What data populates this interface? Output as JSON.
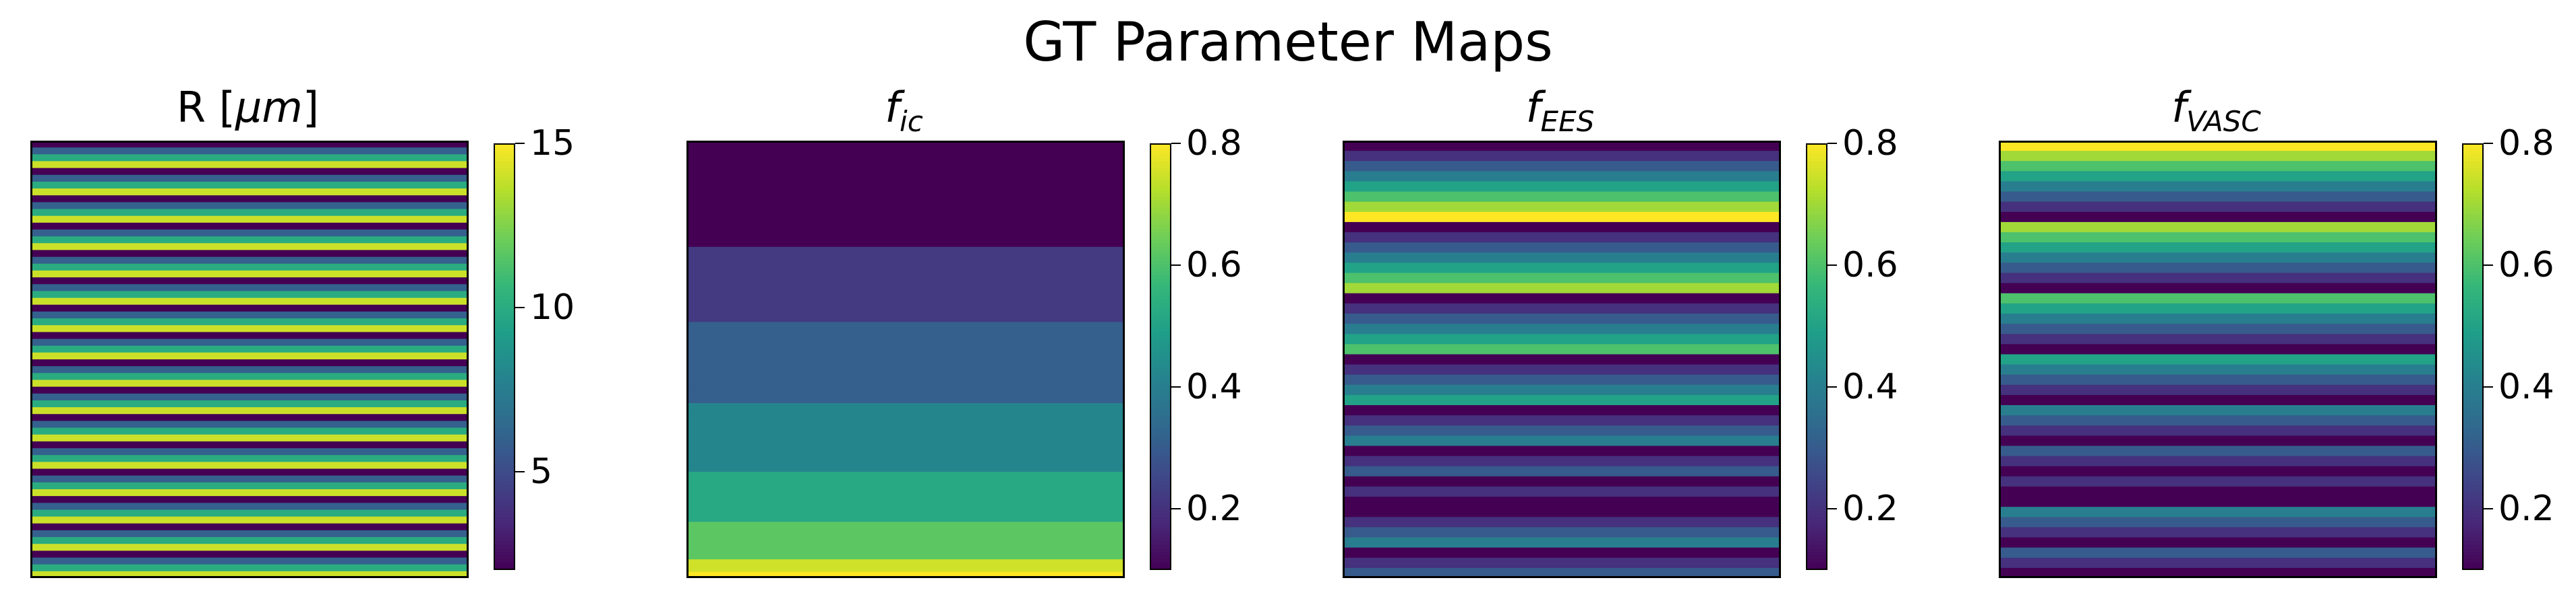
{
  "figure": {
    "title": "GT Parameter Maps"
  },
  "colors": {
    "viridis": [
      "#440154",
      "#482878",
      "#3e4989",
      "#31688e",
      "#26828e",
      "#1f9e89",
      "#35b779",
      "#6ece58",
      "#b5de2b",
      "#fde725"
    ]
  },
  "chart_data": [
    {
      "type": "heatmap",
      "title": "R [μm]",
      "title_parts": {
        "base": "R [",
        "unit": "μm",
        "close": "]"
      },
      "cmap": "viridis",
      "vmin": 2,
      "vmax": 15,
      "colorbar_ticks": [
        "5",
        "10",
        "15"
      ],
      "colorbar_tick_values": [
        5,
        10,
        15
      ],
      "rows": [
        2,
        6,
        10,
        14,
        2,
        6,
        10,
        14,
        2,
        6,
        10,
        14,
        2,
        6,
        10,
        14,
        2,
        6,
        10,
        14,
        2,
        6,
        10,
        14,
        2,
        6,
        10,
        14,
        2,
        6,
        10,
        14,
        2,
        6,
        10,
        14,
        2,
        6,
        10,
        14,
        2,
        6,
        10,
        14,
        2,
        6,
        10,
        14,
        2,
        6,
        10,
        14,
        2,
        6,
        10,
        14,
        2,
        6,
        10,
        14,
        2,
        6,
        10,
        14
      ],
      "grid": false
    },
    {
      "type": "heatmap",
      "title": "f_ic",
      "title_parts": {
        "base": "f",
        "sub": "ic"
      },
      "cmap": "viridis",
      "vmin": 0.1,
      "vmax": 0.8,
      "colorbar_ticks": [
        "0.2",
        "0.4",
        "0.6",
        "0.8"
      ],
      "colorbar_tick_values": [
        0.2,
        0.4,
        0.6,
        0.8
      ],
      "rows": [
        0.1,
        0.1,
        0.1,
        0.1,
        0.1,
        0.1,
        0.1,
        0.1,
        0.1,
        0.1,
        0.1,
        0.1,
        0.1,
        0.1,
        0.1,
        0.1,
        0.1,
        0.22,
        0.22,
        0.22,
        0.22,
        0.22,
        0.22,
        0.22,
        0.22,
        0.22,
        0.22,
        0.22,
        0.22,
        0.31,
        0.31,
        0.31,
        0.31,
        0.31,
        0.31,
        0.31,
        0.31,
        0.31,
        0.31,
        0.31,
        0.31,
        0.31,
        0.42,
        0.42,
        0.42,
        0.42,
        0.42,
        0.42,
        0.42,
        0.42,
        0.42,
        0.42,
        0.42,
        0.52,
        0.52,
        0.52,
        0.52,
        0.52,
        0.52,
        0.52,
        0.52,
        0.62,
        0.62,
        0.62,
        0.62,
        0.62,
        0.62,
        0.75,
        0.75,
        0.8
      ],
      "grid": false
    },
    {
      "type": "heatmap",
      "title": "f_EES",
      "title_parts": {
        "base": "f",
        "sub": "EES"
      },
      "cmap": "viridis",
      "vmin": 0.1,
      "vmax": 0.8,
      "colorbar_ticks": [
        "0.2",
        "0.4",
        "0.6",
        "0.8"
      ],
      "colorbar_tick_values": [
        0.2,
        0.4,
        0.6,
        0.8
      ],
      "rows": [
        0.1,
        0.2,
        0.3,
        0.4,
        0.5,
        0.6,
        0.7,
        0.8,
        0.1,
        0.2,
        0.3,
        0.4,
        0.5,
        0.6,
        0.7,
        0.1,
        0.2,
        0.3,
        0.4,
        0.5,
        0.6,
        0.1,
        0.2,
        0.3,
        0.4,
        0.5,
        0.1,
        0.2,
        0.3,
        0.4,
        0.1,
        0.2,
        0.3,
        0.1,
        0.2,
        0.1,
        0.1,
        0.2,
        0.3,
        0.4,
        0.1,
        0.2,
        0.3
      ],
      "grid": false
    },
    {
      "type": "heatmap",
      "title": "f_VASC",
      "title_parts": {
        "base": "f",
        "sub": "VASC"
      },
      "cmap": "viridis",
      "vmin": 0.1,
      "vmax": 0.8,
      "colorbar_ticks": [
        "0.2",
        "0.4",
        "0.6",
        "0.8"
      ],
      "colorbar_tick_values": [
        0.2,
        0.4,
        0.6,
        0.8
      ],
      "rows": [
        0.8,
        0.7,
        0.6,
        0.5,
        0.4,
        0.3,
        0.2,
        0.1,
        0.7,
        0.6,
        0.5,
        0.4,
        0.3,
        0.2,
        0.1,
        0.6,
        0.5,
        0.4,
        0.3,
        0.2,
        0.1,
        0.5,
        0.4,
        0.3,
        0.2,
        0.1,
        0.4,
        0.3,
        0.2,
        0.1,
        0.3,
        0.2,
        0.1,
        0.2,
        0.1,
        0.1,
        0.4,
        0.3,
        0.2,
        0.1,
        0.3,
        0.2,
        0.1
      ],
      "grid": false
    }
  ]
}
